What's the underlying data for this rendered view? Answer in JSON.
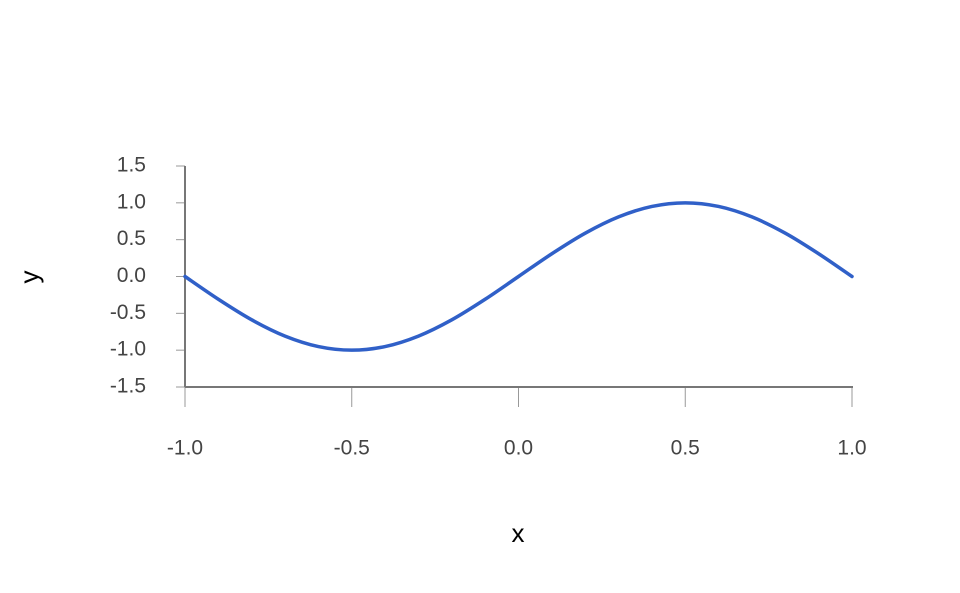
{
  "chart_data": {
    "type": "line",
    "title": "",
    "xlabel": "x",
    "ylabel": "y",
    "xlim": [
      -1.0,
      1.0
    ],
    "ylim": [
      -1.5,
      1.5
    ],
    "x_ticks": [
      "-1.0",
      "-0.5",
      "0.0",
      "0.5",
      "1.0"
    ],
    "y_ticks": [
      "1.5",
      "1.0",
      "0.5",
      "0.0",
      "-0.5",
      "-1.0",
      "-1.5"
    ],
    "grid": false,
    "legend": "none",
    "series": [
      {
        "color": "#3060c8",
        "x": [
          -1.0,
          -0.9,
          -0.8,
          -0.7,
          -0.6,
          -0.5,
          -0.4,
          -0.3,
          -0.2,
          -0.1,
          0.0,
          0.1,
          0.2,
          0.3,
          0.4,
          0.5,
          0.6,
          0.7,
          0.8,
          0.9,
          1.0
        ],
        "y": [
          0.0,
          -0.309,
          -0.588,
          -0.809,
          -0.951,
          -1.0,
          -0.951,
          -0.809,
          -0.588,
          -0.309,
          0.0,
          0.309,
          0.588,
          0.809,
          0.951,
          1.0,
          0.951,
          0.809,
          0.588,
          0.309,
          0.0
        ]
      }
    ]
  }
}
